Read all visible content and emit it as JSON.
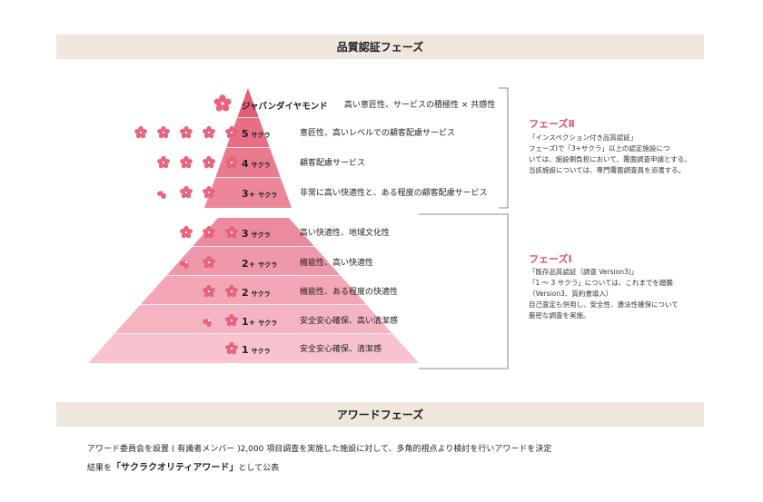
{
  "colors": {
    "band_bg": "#efe7de",
    "accent": "#e0546f",
    "blossom": "#e8637d",
    "tier_colors": [
      "#e05f77",
      "#e76f84",
      "#ea7b8e",
      "#ec879a",
      "#ec8aa0",
      "#ef98ab",
      "#f2a6b6",
      "#f5b4c1",
      "#f8c3ce",
      "#fad3db"
    ]
  },
  "header": {
    "title": "品質認証フェーズ"
  },
  "tiers": [
    {
      "rank_main": "",
      "rank_sub": "",
      "rank_full": "ジャパンダイヤモンド",
      "desc": "高い意匠性、サービスの積極性 × 共感性",
      "blossoms": 1,
      "half": false
    },
    {
      "rank_main": "5",
      "rank_sub": "サクラ",
      "desc": "意匠性、高いレベルでの顧客配慮サービス",
      "blossoms": 5,
      "half": false
    },
    {
      "rank_main": "4",
      "rank_sub": "サクラ",
      "desc": "顧客配慮サービス",
      "blossoms": 4,
      "half": false
    },
    {
      "rank_main": "3",
      "rank_plus": "+",
      "rank_sub": "サクラ",
      "desc": "非常に高い快適性と、ある程度の顧客配慮サービス",
      "blossoms": 3,
      "half": true
    },
    {
      "rank_main": "3",
      "rank_sub": "サクラ",
      "desc": "高い快適性、地域文化性",
      "blossoms": 3,
      "half": false
    },
    {
      "rank_main": "2",
      "rank_plus": "+",
      "rank_sub": "サクラ",
      "desc": "機能性、高い快適性",
      "blossoms": 2,
      "half": true
    },
    {
      "rank_main": "2",
      "rank_sub": "サクラ",
      "desc": "機能性、ある程度の快適性",
      "blossoms": 2,
      "half": false
    },
    {
      "rank_main": "1",
      "rank_plus": "+",
      "rank_sub": "サクラ",
      "desc": "安全安心確保、高い清潔感",
      "blossoms": 1,
      "half": true
    },
    {
      "rank_main": "1",
      "rank_sub": "サクラ",
      "desc": "安全安心確保、清潔感",
      "blossoms": 1,
      "half": false
    }
  ],
  "phase2": {
    "title": "フェーズⅡ",
    "lines": [
      "「インスペクション付き品質認証」",
      "フェーズⅠで「3+サクラ」以上の認定施設につ",
      "いては、施設側負担において、覆面調査申請とする。",
      "当該施設については、専門覆面調査員を派遣する。"
    ]
  },
  "phase1": {
    "title": "フェーズⅠ",
    "lines": [
      "「既存品質認証（調査 Version3)」",
      "「1 ～ 3 サクラ」については、これまでを踏襲",
      "（Version3、質約書導入）",
      "自己査定も併用し、安全性、遵法性確保について",
      "厳密な調査を実施。"
    ]
  },
  "award": {
    "title": "アワードフェーズ",
    "line1": "アワード委員会を設置 ( 有識者メンバー )2,000 項目調査を実施した施設に対して、多角的視点より検討を行いアワードを決定",
    "line2_pre": "結果を",
    "line2_em": "「サクラクオリティアワード」",
    "line2_post": "として公表"
  }
}
